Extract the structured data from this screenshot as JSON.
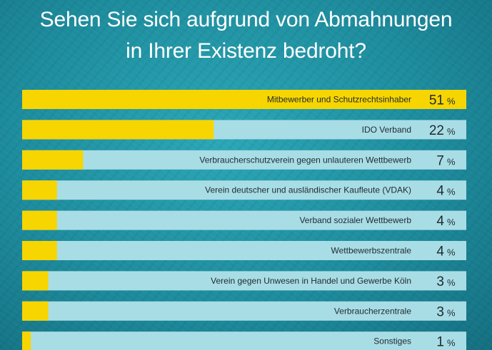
{
  "title_line1": "Sehen Sie sich aufgrund von Abmahnungen",
  "title_line2": "in Ihrer Existenz bedroht?",
  "colors": {
    "bar_fill": "#f7d500",
    "bar_track": "#a9dde6",
    "background": "#1d8c9d"
  },
  "chart_data": {
    "type": "bar",
    "orientation": "horizontal",
    "title": "Sehen Sie sich aufgrund von Abmahnungen in Ihrer Existenz bedroht?",
    "unit": "%",
    "xlim": [
      0,
      51
    ],
    "categories": [
      "Mitbewerber und Schutzrechtsinhaber",
      "IDO Verband",
      "Verbraucherschutzverein gegen unlauteren Wettbewerb",
      "Verein deutscher und ausländischer Kaufleute (VDAK)",
      "Verband sozialer Wettbewerb",
      "Wettbewerbszentrale",
      "Verein gegen Unwesen in Handel und Gewerbe Köln",
      "Verbraucherzentrale",
      "Sonstiges"
    ],
    "values": [
      51,
      22,
      7,
      4,
      4,
      4,
      3,
      3,
      1
    ]
  }
}
